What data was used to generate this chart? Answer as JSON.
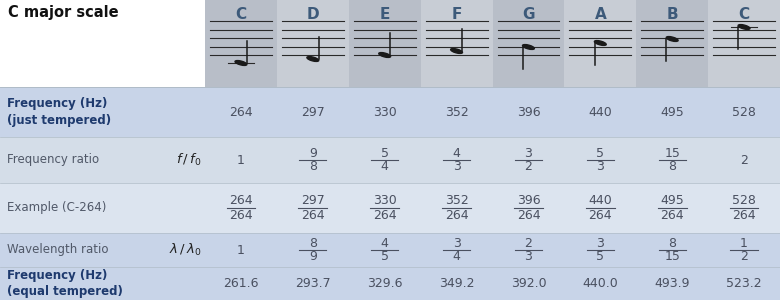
{
  "title": "C major scale",
  "notes": [
    "C",
    "D",
    "E",
    "F",
    "G",
    "A",
    "B",
    "C"
  ],
  "freq_just": [
    "264",
    "297",
    "330",
    "352",
    "396",
    "440",
    "495",
    "528"
  ],
  "freq_ratio_num": [
    "1",
    "9",
    "5",
    "4",
    "3",
    "5",
    "15",
    "2"
  ],
  "freq_ratio_den": [
    "",
    "8",
    "4",
    "3",
    "2",
    "3",
    "8",
    ""
  ],
  "example_num": [
    "264",
    "297",
    "330",
    "352",
    "396",
    "440",
    "495",
    "528"
  ],
  "example_den": [
    "264",
    "264",
    "264",
    "264",
    "264",
    "264",
    "264",
    "264"
  ],
  "wave_ratio_num": [
    "1",
    "8",
    "4",
    "3",
    "2",
    "3",
    "8",
    "1"
  ],
  "wave_ratio_den": [
    "",
    "9",
    "5",
    "4",
    "3",
    "5",
    "15",
    "2"
  ],
  "freq_equal": [
    "261.6",
    "293.7",
    "329.6",
    "349.2",
    "392.0",
    "440.0",
    "493.9",
    "523.2"
  ],
  "header_col_colors": [
    "#b8bec8",
    "#c8cdd5",
    "#b8bec8",
    "#c8cdd5",
    "#b8bec8",
    "#c8cdd5",
    "#b8bec8",
    "#c8cdd5"
  ],
  "row_colors": [
    "#c8d4e8",
    "#d4dde8",
    "#dce4ef",
    "#c8d4e8",
    "#c8d4e8"
  ],
  "label_area_color": "#dce6f0",
  "title_bg": "#ffffff",
  "note_color": "#3d5a7a",
  "data_color": "#4a5060",
  "label_bold_color": "#1e3a6e",
  "label_normal_color": "#505868",
  "divider_color": "#b0bcc8",
  "staff_color": "#2a2a2a",
  "note_head_color": "#1a1a1a"
}
